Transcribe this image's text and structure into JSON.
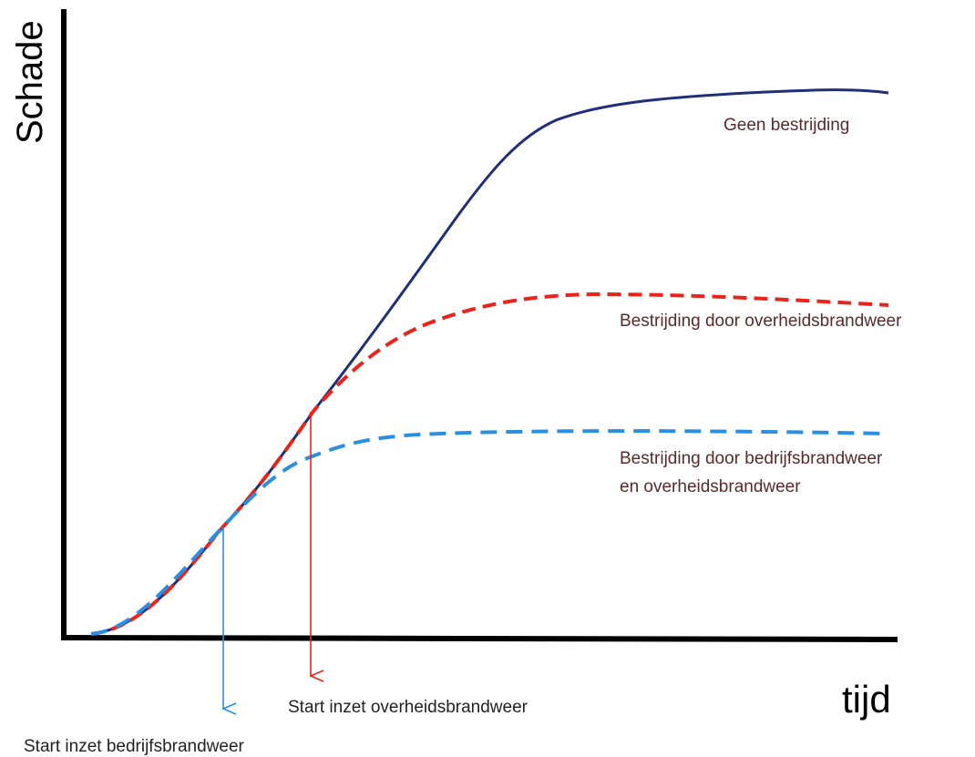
{
  "chart_data": {
    "type": "line",
    "title": "",
    "ylabel": "Schade",
    "xlabel": "tijd",
    "grid": false,
    "series": [
      {
        "name": "Geen bestrijding",
        "color": "#1f2f7a",
        "style": "solid",
        "label_lines": [
          "Geen bestrijding"
        ]
      },
      {
        "name": "Bestrijding door overheidsbrandweer",
        "color": "#e8241c",
        "style": "dashed",
        "label_lines": [
          "Bestrijding door overheidsbrandweer"
        ]
      },
      {
        "name": "Bestrijding door bedrijfsbrandweer en overheidsbrandweer",
        "color": "#2a8fe0",
        "style": "dashed",
        "label_lines": [
          "Bestrijding door bedrijfsbrandweer",
          "en overheidsbrandweer"
        ]
      }
    ],
    "markers": [
      {
        "label": "Start inzet bedrijfsbrandweer",
        "color": "#2a8fe0"
      },
      {
        "label": "Start inzet overheidsbrandweer",
        "color": "#e8241c"
      }
    ]
  }
}
